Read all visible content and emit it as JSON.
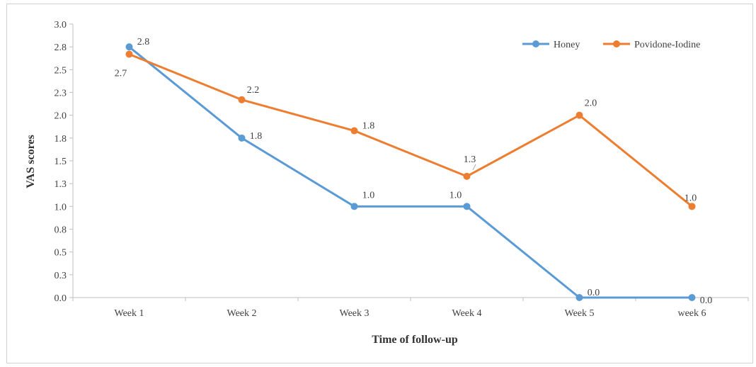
{
  "chart_data": {
    "type": "line",
    "title": "",
    "xlabel": "Time of follow-up",
    "ylabel": "VAS scores",
    "categories": [
      "Week 1",
      "Week 2",
      "Week 3",
      "Week 4",
      "Week 5",
      "week 6"
    ],
    "ylim": [
      0,
      3.0
    ],
    "yticks": [
      "0.0",
      "0.3",
      "0.5",
      "0.8",
      "1.0",
      "1.3",
      "1.5",
      "1.8",
      "2.0",
      "2.3",
      "2.5",
      "2.8",
      "3.0"
    ],
    "legend_position": "top-right",
    "grid": false,
    "series": [
      {
        "name": "Honey",
        "color": "#5b9bd5",
        "values": [
          2.75,
          1.75,
          1.0,
          1.0,
          0.0,
          0.0
        ],
        "labels": [
          "2.8",
          "1.8",
          "1.0",
          "1.0",
          "0.0",
          "0.0"
        ]
      },
      {
        "name": "Povidone-Iodine",
        "color": "#ed7d31",
        "values": [
          2.67,
          2.17,
          1.83,
          1.33,
          2.0,
          1.0
        ],
        "labels": [
          "2.7",
          "2.2",
          "1.8",
          "1.3",
          "2.0",
          "1.0"
        ]
      }
    ]
  }
}
